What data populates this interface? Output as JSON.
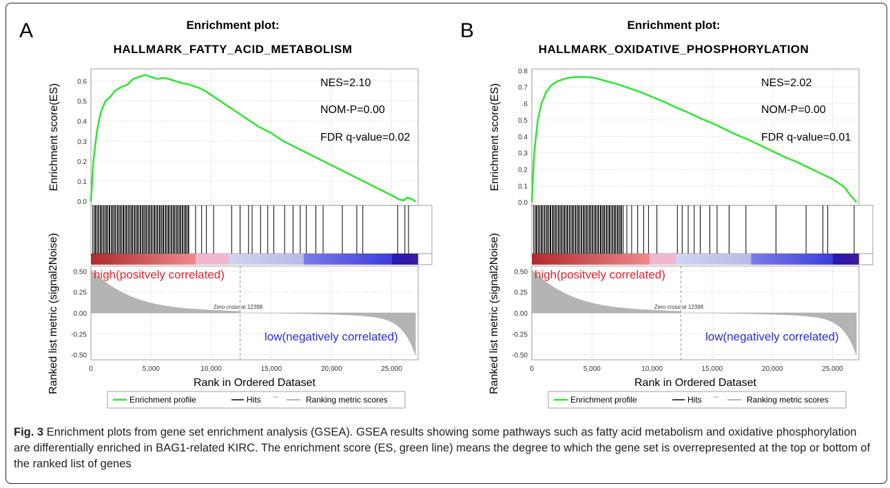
{
  "figure": {
    "caption_label": "Fig. 3",
    "caption_text": " Enrichment plots from gene set enrichment analysis (GSEA). GSEA results showing some pathways such as fatty acid metabolism and oxidative phosphorylation are differentially enriched in BAG1-related KIRC. The enrichment score (ES, green line) means the degree to which the gene set is overrepresented at the top or bottom of the ranked list of genes"
  },
  "colors": {
    "profile": "#33e533",
    "hits": "#000000",
    "ranking": "#b4b4b4",
    "high_text": "#e8202a",
    "low_text": "#2a2ae0"
  },
  "chart_data": [
    {
      "type": "line",
      "panel_letter": "A",
      "title": "Enrichment plot:",
      "subtitle": "HALLMARK_FATTY_ACID_METABOLISM",
      "ylabel_es": "Enrichment score(ES)",
      "ylabel_rank": "Ranked list metric (signal2Noise)",
      "xlabel": "Rank in Ordered Dataset",
      "xlim": [
        0,
        27200
      ],
      "es_ylim": [
        -0.02,
        0.66
      ],
      "es_ticks": [
        "0.0",
        "0.1",
        "0.2",
        "0.3",
        "0.4",
        "0.5",
        "0.6"
      ],
      "rank_ylim": [
        -0.56,
        0.56
      ],
      "rank_ticks": [
        "0.50",
        "0.25",
        "0.00",
        "-0.25",
        "-0.50"
      ],
      "x_ticks": [
        "0",
        "5,000",
        "10,000",
        "15,000",
        "20,000",
        "25,000"
      ],
      "stats": {
        "nes": "NES=2.10",
        "nom_p": "NOM-P=0.00",
        "fdr": "FDR q-value=0.02"
      },
      "zero_cross": 12398,
      "zero_cross_label": "Zero cross at 12398",
      "high_label": "high(positvely correlated)",
      "low_label": "low(negatively correlated)",
      "legend": [
        "Enrichment profile",
        "Hits",
        "Ranking metric scores"
      ],
      "es_profile": {
        "x": [
          0,
          200,
          500,
          800,
          1200,
          1600,
          2000,
          2500,
          3000,
          3500,
          4000,
          4500,
          5000,
          5500,
          6000,
          6500,
          7000,
          7500,
          8000,
          8500,
          9000,
          9500,
          10000,
          11000,
          12000,
          13000,
          14000,
          15000,
          16000,
          17000,
          18000,
          19000,
          20000,
          21000,
          22000,
          23000,
          24000,
          25000,
          25600,
          26000,
          26300,
          26700,
          27000
        ],
        "y": [
          0.0,
          0.2,
          0.35,
          0.44,
          0.5,
          0.52,
          0.55,
          0.57,
          0.58,
          0.61,
          0.62,
          0.63,
          0.62,
          0.61,
          0.615,
          0.61,
          0.6,
          0.59,
          0.585,
          0.575,
          0.565,
          0.55,
          0.53,
          0.49,
          0.45,
          0.41,
          0.37,
          0.34,
          0.3,
          0.27,
          0.24,
          0.21,
          0.18,
          0.15,
          0.12,
          0.09,
          0.06,
          0.03,
          0.01,
          0.005,
          0.02,
          0.01,
          0.0
        ]
      },
      "hits_dense_end": 8200,
      "hits_sparse": [
        8700,
        9200,
        9600,
        10200,
        11700,
        12400,
        13100,
        13400,
        14100,
        14700,
        15200,
        16100,
        16800,
        17400,
        17900,
        18700,
        19300,
        20900,
        22100,
        22600,
        25500,
        26100,
        26400
      ],
      "color_bar": [
        {
          "to": 0.32,
          "from_color": "#b0292c",
          "to_color": "#f08a8e"
        },
        {
          "to": 0.42,
          "from_color": "#f3b6cf",
          "to_color": "#f3b6cf"
        },
        {
          "to": 0.65,
          "from_color": "#d0d2ee",
          "to_color": "#b8bbea"
        },
        {
          "to": 0.92,
          "from_color": "#7c7ce6",
          "to_color": "#3d3ddc"
        },
        {
          "to": 1.0,
          "from_color": "#2a1ab0",
          "to_color": "#3a1a9a"
        }
      ]
    },
    {
      "type": "line",
      "panel_letter": "B",
      "title": "Enrichment plot:",
      "subtitle": "HALLMARK_OXIDATIVE_PHOSPHORYLATION",
      "ylabel_es": "Enrichment score(ES)",
      "ylabel_rank": "Ranked list metric (signal2Noise)",
      "xlabel": "Rank in Ordered Dataset",
      "xlim": [
        0,
        27200
      ],
      "es_ylim": [
        -0.02,
        0.81
      ],
      "es_ticks": [
        "0.0",
        "0.1",
        "0.2",
        "0.3",
        "0.4",
        "0.5",
        ".6",
        "0.7",
        "0.8"
      ],
      "rank_ylim": [
        -0.56,
        0.56
      ],
      "rank_ticks": [
        "0.50",
        "0.25",
        "0.00",
        "-0.25",
        "-0.50"
      ],
      "x_ticks": [
        "0",
        "5,000",
        "10,000",
        "15,000",
        "20,000",
        "25,000"
      ],
      "stats": {
        "nes": "NES=2.02",
        "nom_p": "NOM-P=0.00",
        "fdr": "FDR q-value=0.01"
      },
      "zero_cross": 12398,
      "zero_cross_label": "Zero cross at 12398",
      "high_label": "high(positvely correlated)",
      "low_label": "low(negatively correlated)",
      "legend": [
        "Enrichment profile",
        "Hits",
        "Ranking metric scores"
      ],
      "es_profile": {
        "x": [
          0,
          200,
          500,
          800,
          1200,
          1600,
          2000,
          2500,
          3000,
          3500,
          4000,
          4500,
          5000,
          5500,
          6000,
          7000,
          8000,
          9000,
          10000,
          11000,
          12000,
          13000,
          14000,
          15000,
          16000,
          17000,
          18000,
          19000,
          20000,
          21000,
          22000,
          23000,
          24000,
          25000,
          26000,
          26500,
          27000
        ],
        "y": [
          0.0,
          0.3,
          0.5,
          0.6,
          0.67,
          0.71,
          0.73,
          0.745,
          0.755,
          0.76,
          0.762,
          0.76,
          0.758,
          0.75,
          0.74,
          0.72,
          0.695,
          0.67,
          0.64,
          0.61,
          0.575,
          0.545,
          0.51,
          0.48,
          0.445,
          0.41,
          0.38,
          0.345,
          0.31,
          0.275,
          0.245,
          0.21,
          0.175,
          0.14,
          0.09,
          0.04,
          0.0
        ]
      },
      "hits_dense_end": 7600,
      "hits_sparse": [
        7900,
        8300,
        8800,
        9300,
        9700,
        10400,
        12100,
        12500,
        13000,
        13500,
        14000,
        14800,
        15400,
        16400,
        17800,
        20300,
        22800,
        24200,
        24600,
        26800
      ],
      "color_bar": [
        {
          "to": 0.36,
          "from_color": "#b0292c",
          "to_color": "#f08a8e"
        },
        {
          "to": 0.44,
          "from_color": "#f3b6cf",
          "to_color": "#f3b6cf"
        },
        {
          "to": 0.67,
          "from_color": "#d0d2ee",
          "to_color": "#b8bbea"
        },
        {
          "to": 0.92,
          "from_color": "#7c7ce6",
          "to_color": "#3d3ddc"
        },
        {
          "to": 1.0,
          "from_color": "#2a1ab0",
          "to_color": "#3a1a9a"
        }
      ]
    }
  ]
}
